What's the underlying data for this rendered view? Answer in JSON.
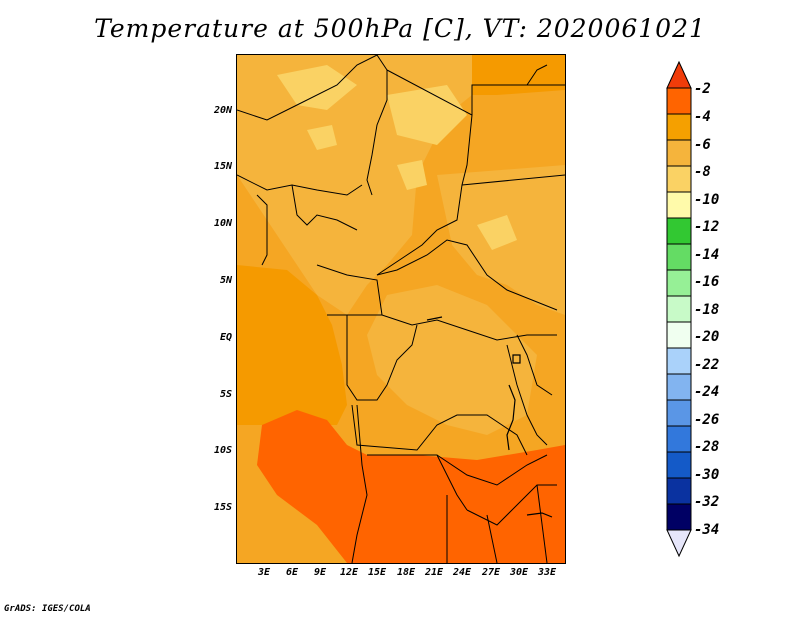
{
  "title": "Temperature at 500hPa [C], VT: 2020061021",
  "credit": "GrADS: IGES/COLA",
  "lat_labels": [
    "20N",
    "15N",
    "10N",
    "5N",
    "EQ",
    "5S",
    "10S",
    "15S"
  ],
  "lon_labels": [
    "3E",
    "6E",
    "9E",
    "12E",
    "15E",
    "18E",
    "21E",
    "24E",
    "27E",
    "30E",
    "33E"
  ],
  "colorbar": {
    "labels": [
      "-2",
      "-4",
      "-6",
      "-8",
      "-10",
      "-12",
      "-14",
      "-16",
      "-18",
      "-20",
      "-22",
      "-24",
      "-26",
      "-28",
      "-30",
      "-32",
      "-34"
    ],
    "colors": [
      "#f03c0a",
      "#ff6400",
      "#f5a000",
      "#f5b43c",
      "#fad264",
      "#fffaaa",
      "#32c832",
      "#64dc64",
      "#96f096",
      "#c8fac8",
      "#f0fff0",
      "#aad2fa",
      "#82b4f0",
      "#5a96e6",
      "#3278dc",
      "#145ac8",
      "#0a32a0",
      "#000064",
      "#e6e6fa"
    ]
  }
}
